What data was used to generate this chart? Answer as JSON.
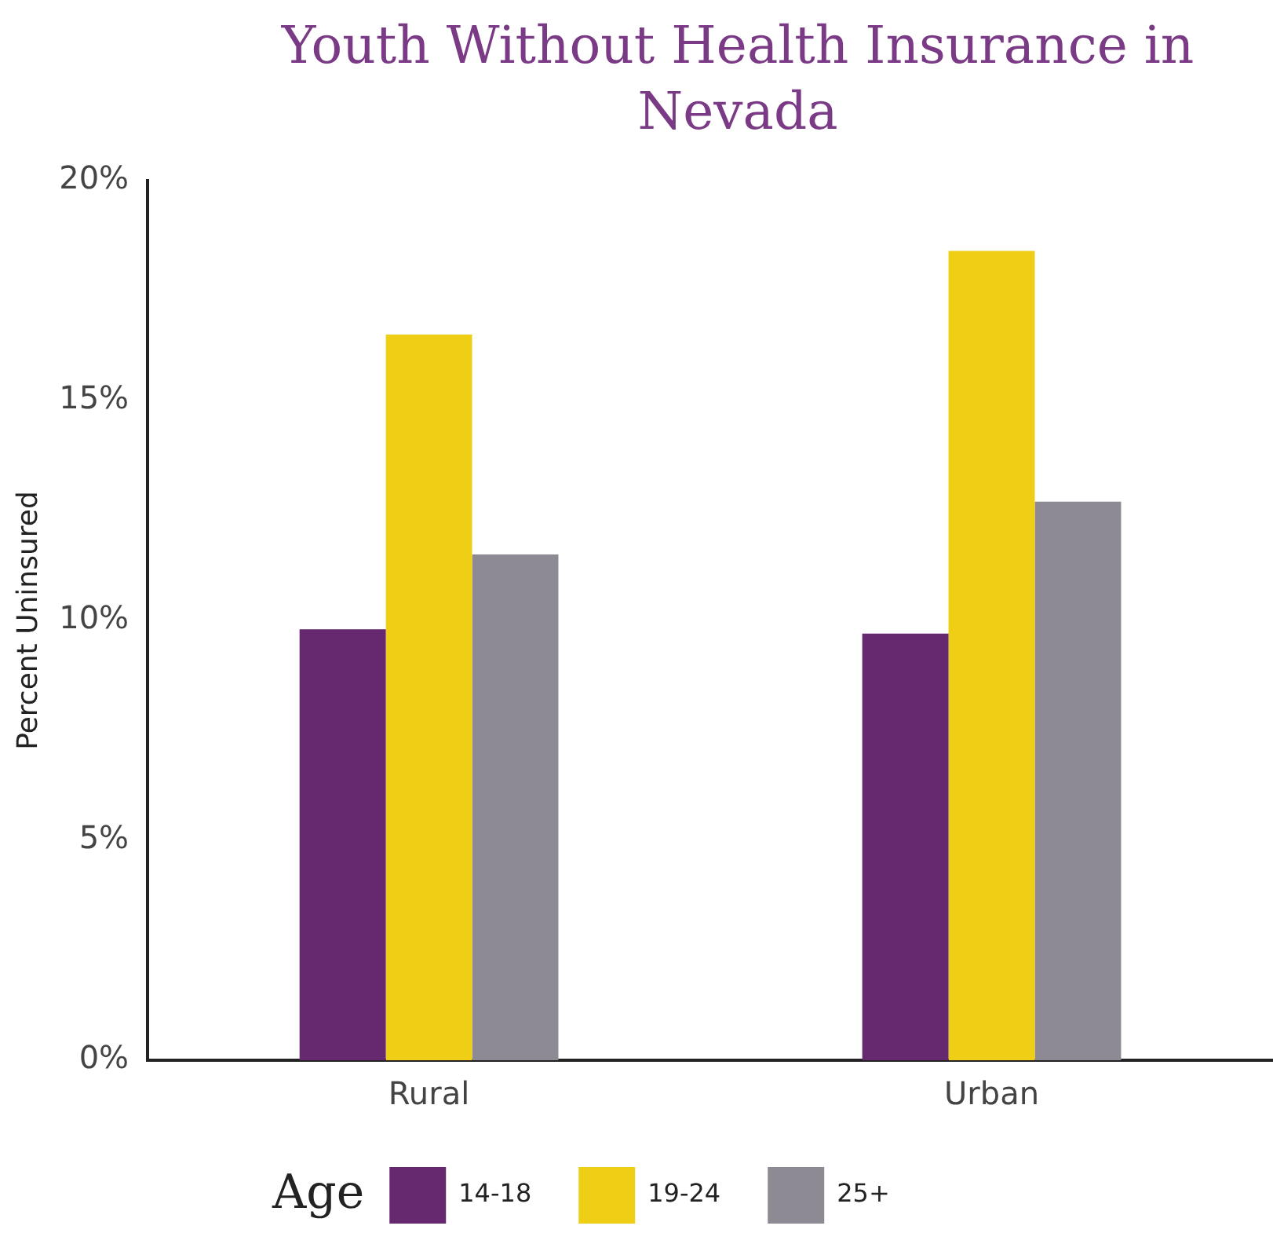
{
  "chart_data": {
    "type": "bar",
    "title": "Youth Without Health Insurance in Nevada",
    "ylabel": "Percent Uninsured",
    "legend_title": "Age",
    "categories": [
      "Rural",
      "Urban"
    ],
    "series": [
      {
        "name": "14-18",
        "color": "#66296f",
        "values": [
          9.8,
          9.7
        ]
      },
      {
        "name": "19-24",
        "color": "#eecf16",
        "values": [
          16.5,
          18.4
        ]
      },
      {
        "name": "25+",
        "color": "#8e8a93",
        "values": [
          11.5,
          12.7
        ]
      }
    ],
    "ylim": [
      0,
      20
    ],
    "yticks": [
      {
        "value": 0,
        "label": "0%"
      },
      {
        "value": 5,
        "label": "5%"
      },
      {
        "value": 10,
        "label": "10%"
      },
      {
        "value": 15,
        "label": "15%"
      },
      {
        "value": 20,
        "label": "20%"
      }
    ],
    "grid": false,
    "legend": "bottom"
  }
}
